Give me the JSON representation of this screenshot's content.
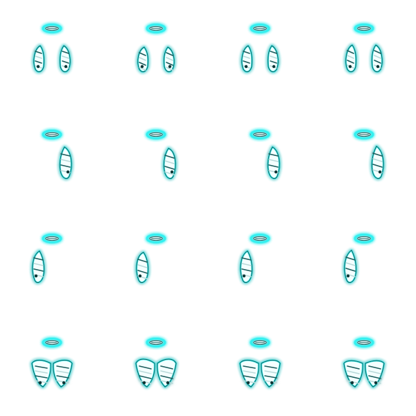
{
  "sprite_sheet": {
    "grid": {
      "rows": 4,
      "columns": 4
    },
    "colors": {
      "background": "#ffffff",
      "glow": "#33f0f0",
      "glow_soft": "#9ff8f8",
      "halo_core": "#e9ffff",
      "feather_light": "#f4ffff",
      "feather_mid": "#b9d9d9",
      "feather_dark": "#1c5a5a",
      "feather_shadow": "#0b3535"
    },
    "rows": [
      {
        "facing": "front",
        "frames": 4
      },
      {
        "facing": "right",
        "frames": 4
      },
      {
        "facing": "left",
        "frames": 4
      },
      {
        "facing": "back",
        "frames": 4
      }
    ]
  }
}
